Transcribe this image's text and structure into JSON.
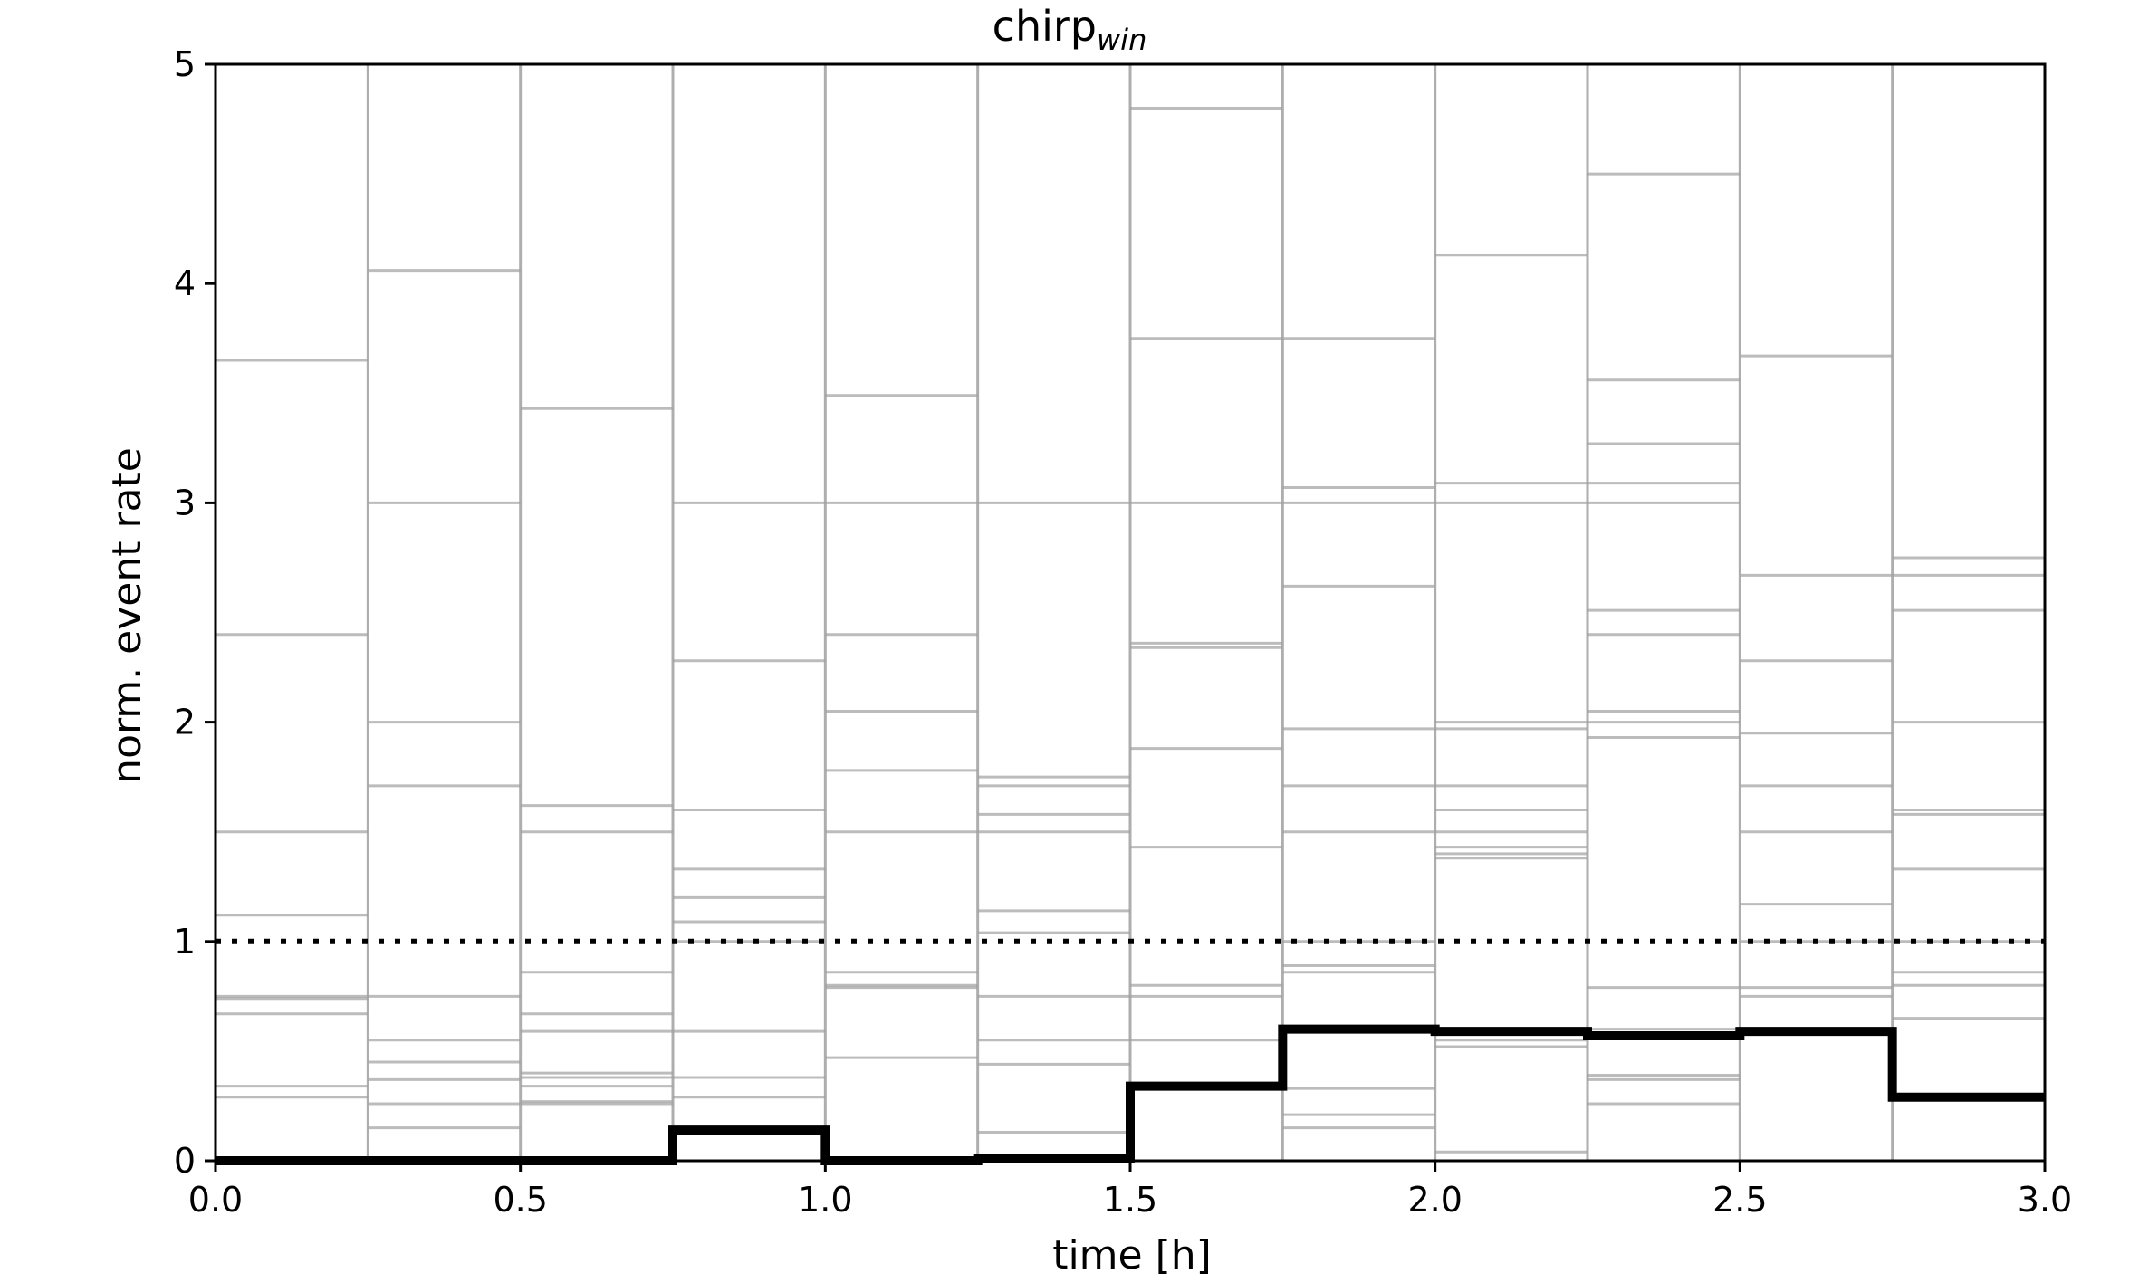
{
  "chart_data": {
    "type": "line",
    "title": "chirp",
    "title_subscript": "win",
    "xlabel": "time [h]",
    "ylabel": "norm. event rate",
    "xlim": [
      0.0,
      3.0
    ],
    "ylim": [
      0,
      5
    ],
    "xticks": [
      0.0,
      0.5,
      1.0,
      1.5,
      2.0,
      2.5,
      3.0
    ],
    "xtick_labels": [
      "0.0",
      "0.5",
      "1.0",
      "1.5",
      "2.0",
      "2.5",
      "3.0"
    ],
    "yticks": [
      0,
      1,
      2,
      3,
      4,
      5
    ],
    "ytick_labels": [
      "0",
      "1",
      "2",
      "3",
      "4",
      "5"
    ],
    "grid": false,
    "reference_line": {
      "y": 1.0,
      "style": "dotted",
      "color": "#000000"
    },
    "bin_edges": [
      0.0,
      0.25,
      0.5,
      0.75,
      1.0,
      1.25,
      1.5,
      1.75,
      2.0,
      2.25,
      2.5,
      2.75,
      3.0
    ],
    "mean_series": {
      "color": "#000000",
      "values": [
        0.0,
        0.0,
        0.0,
        0.14,
        0.0,
        0.01,
        0.34,
        0.6,
        0.59,
        0.57,
        0.59,
        0.29
      ]
    },
    "individual_series_color": "#a0a0a0",
    "individual_series_levels": [
      [
        3.65,
        2.4,
        1.5,
        1.12,
        0.75,
        0.74,
        0.67,
        0.34,
        0.29,
        0.0
      ],
      [
        4.06,
        3.0,
        2.0,
        1.71,
        0.75,
        0.55,
        0.45,
        0.37,
        0.26,
        0.15,
        0.0
      ],
      [
        3.43,
        1.62,
        1.5,
        0.86,
        0.67,
        0.59,
        0.4,
        0.38,
        0.34,
        0.27,
        0.26,
        0.0
      ],
      [
        3.0,
        2.28,
        1.6,
        1.33,
        1.2,
        1.09,
        1.0,
        0.59,
        0.38,
        0.29,
        0.0
      ],
      [
        3.49,
        3.0,
        2.4,
        2.05,
        1.78,
        1.5,
        0.86,
        0.8,
        0.79,
        0.47,
        0.0
      ],
      [
        3.0,
        1.75,
        1.71,
        1.58,
        1.5,
        1.14,
        1.04,
        0.75,
        0.55,
        0.44,
        0.13,
        0.0
      ],
      [
        4.8,
        3.75,
        3.0,
        2.36,
        2.34,
        1.88,
        1.43,
        0.8,
        0.75,
        0.55,
        0.0
      ],
      [
        3.75,
        3.07,
        3.0,
        2.62,
        1.97,
        1.71,
        1.5,
        1.0,
        0.89,
        0.86,
        0.6,
        0.33,
        0.21,
        0.15,
        0.0
      ],
      [
        4.13,
        3.09,
        3.0,
        2.0,
        1.97,
        1.71,
        1.6,
        1.5,
        1.43,
        1.4,
        1.38,
        0.6,
        0.55,
        0.52,
        0.04,
        0.0
      ],
      [
        4.5,
        3.56,
        3.27,
        3.09,
        3.0,
        2.51,
        2.4,
        2.05,
        2.0,
        1.93,
        0.79,
        0.6,
        0.39,
        0.37,
        0.26,
        0.0
      ],
      [
        3.67,
        2.67,
        2.28,
        1.95,
        1.71,
        1.5,
        1.17,
        1.0,
        0.79,
        0.75,
        0.6,
        0.0
      ],
      [
        2.75,
        2.67,
        2.51,
        2.0,
        1.6,
        1.58,
        1.33,
        1.0,
        0.86,
        0.8,
        0.65,
        0.0
      ]
    ]
  }
}
